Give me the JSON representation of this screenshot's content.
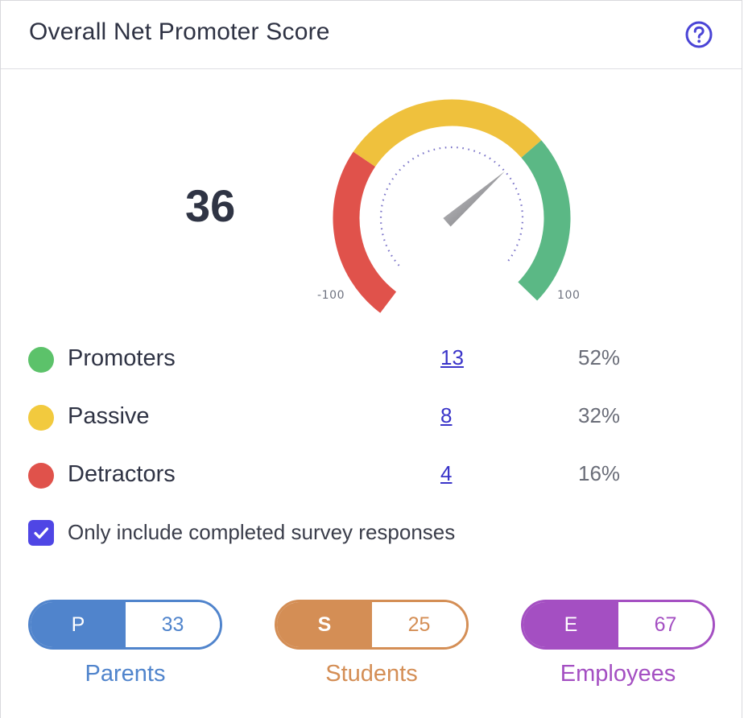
{
  "header": {
    "title": "Overall Net Promoter Score",
    "help_icon": "question-circle-icon"
  },
  "score": {
    "value": "36"
  },
  "gauge": {
    "min_label": "-100",
    "max_label": "100",
    "min": -100,
    "max": 100,
    "value": 36,
    "segments": [
      {
        "name": "Detractors",
        "color": "#e0524b"
      },
      {
        "name": "Passive",
        "color": "#efc13d"
      },
      {
        "name": "Promoters",
        "color": "#5bb885"
      }
    ]
  },
  "legend": [
    {
      "label": "Promoters",
      "count": "13",
      "percent": "52%",
      "color": "#5cc26a"
    },
    {
      "label": "Passive",
      "count": "8",
      "percent": "32%",
      "color": "#f2ca3e"
    },
    {
      "label": "Detractors",
      "count": "4",
      "percent": "16%",
      "color": "#e0524b"
    }
  ],
  "filter": {
    "label": "Only include completed survey responses",
    "checked": true
  },
  "groups": [
    {
      "short": "P",
      "value": "33",
      "label": "Parents",
      "color": "#5084cc"
    },
    {
      "short": "S",
      "value": "25",
      "label": "Students",
      "color": "#d48e55"
    },
    {
      "short": "E",
      "value": "67",
      "label": "Employees",
      "color": "#a44fc2"
    }
  ]
}
